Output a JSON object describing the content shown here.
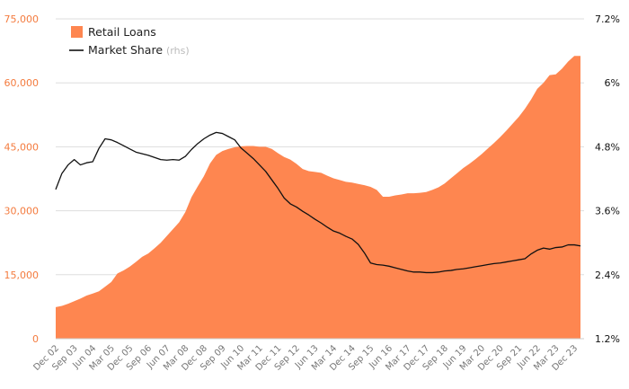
{
  "chart_data": {
    "type": "area",
    "y_left": {
      "min": 0,
      "max": 75000,
      "ticks": [
        "0",
        "15,000",
        "30,000",
        "45,000",
        "60,000",
        "75,000"
      ],
      "values": [
        0,
        15000,
        30000,
        45000,
        60000,
        75000
      ]
    },
    "y_right": {
      "min": 1.2,
      "max": 7.2,
      "ticks": [
        "1.2%",
        "2.4%",
        "3.6%",
        "4.8%",
        "6%",
        "7.2%"
      ],
      "values": [
        1.2,
        2.4,
        3.6,
        4.8,
        6.0,
        7.2
      ]
    },
    "x_ticks": [
      "Dec 02",
      "Sep 03",
      "Jun 04",
      "Mar 05",
      "Dec 05",
      "Sep 06",
      "Jun 07",
      "Mar 08",
      "Dec 08",
      "Sep 09",
      "Jun 10",
      "Mar 11",
      "Dec 11",
      "Sep 12",
      "Jun 13",
      "Mar 14",
      "Dec 14",
      "Sep 15",
      "Jun 16",
      "Mar 17",
      "Dec 17",
      "Sep 18",
      "Jun 19",
      "Mar 20",
      "Dec 20",
      "Sep 21",
      "Jun 22",
      "Mar 23",
      "Dec 23"
    ],
    "x_range_quarters": [
      0,
      85
    ],
    "grid": "horizontal",
    "legend_position": "top-left",
    "series": [
      {
        "name": "Retail Loans",
        "kind": "area",
        "axis": "left",
        "color": "#fe8650",
        "points": [
          [
            0,
            7400
          ],
          [
            1,
            7700
          ],
          [
            2,
            8200
          ],
          [
            3,
            8800
          ],
          [
            4,
            9400
          ],
          [
            5,
            10100
          ],
          [
            6,
            10600
          ],
          [
            7,
            11100
          ],
          [
            8,
            12200
          ],
          [
            9,
            13300
          ],
          [
            10,
            15300
          ],
          [
            11,
            16000
          ],
          [
            12,
            16900
          ],
          [
            13,
            18000
          ],
          [
            14,
            19200
          ],
          [
            15,
            20000
          ],
          [
            16,
            21200
          ],
          [
            17,
            22500
          ],
          [
            18,
            24100
          ],
          [
            19,
            25700
          ],
          [
            20,
            27300
          ],
          [
            21,
            29700
          ],
          [
            22,
            33200
          ],
          [
            23,
            35700
          ],
          [
            24,
            38100
          ],
          [
            25,
            41100
          ],
          [
            26,
            43100
          ],
          [
            27,
            44000
          ],
          [
            28,
            44500
          ],
          [
            29,
            44900
          ],
          [
            30,
            45100
          ],
          [
            31,
            45200
          ],
          [
            32,
            45200
          ],
          [
            33,
            45000
          ],
          [
            34,
            45000
          ],
          [
            35,
            44500
          ],
          [
            36,
            43500
          ],
          [
            37,
            42600
          ],
          [
            38,
            42000
          ],
          [
            39,
            41000
          ],
          [
            40,
            39800
          ],
          [
            41,
            39300
          ],
          [
            42,
            39100
          ],
          [
            43,
            38900
          ],
          [
            44,
            38200
          ],
          [
            45,
            37600
          ],
          [
            46,
            37200
          ],
          [
            47,
            36800
          ],
          [
            48,
            36600
          ],
          [
            49,
            36300
          ],
          [
            50,
            36000
          ],
          [
            51,
            35600
          ],
          [
            52,
            34900
          ],
          [
            53,
            33300
          ],
          [
            54,
            33300
          ],
          [
            55,
            33600
          ],
          [
            56,
            33800
          ],
          [
            57,
            34100
          ],
          [
            58,
            34100
          ],
          [
            59,
            34200
          ],
          [
            60,
            34400
          ],
          [
            61,
            34900
          ],
          [
            62,
            35500
          ],
          [
            63,
            36400
          ],
          [
            64,
            37600
          ],
          [
            65,
            38800
          ],
          [
            66,
            40000
          ],
          [
            67,
            41000
          ],
          [
            68,
            42100
          ],
          [
            69,
            43300
          ],
          [
            70,
            44600
          ],
          [
            71,
            45900
          ],
          [
            72,
            47300
          ],
          [
            73,
            48800
          ],
          [
            74,
            50400
          ],
          [
            75,
            52000
          ],
          [
            76,
            53900
          ],
          [
            77,
            56100
          ],
          [
            78,
            58600
          ],
          [
            79,
            60000
          ],
          [
            80,
            61800
          ],
          [
            81,
            62000
          ],
          [
            82,
            63300
          ],
          [
            83,
            65000
          ],
          [
            84,
            66300
          ],
          [
            85,
            66300
          ]
        ]
      },
      {
        "name": "Market Share",
        "note": "(rhs)",
        "kind": "line",
        "axis": "right",
        "color": "#111111",
        "points": [
          [
            0,
            4.0
          ],
          [
            1,
            4.3
          ],
          [
            2,
            4.46
          ],
          [
            3,
            4.56
          ],
          [
            4,
            4.46
          ],
          [
            5,
            4.5
          ],
          [
            6,
            4.52
          ],
          [
            7,
            4.77
          ],
          [
            8,
            4.95
          ],
          [
            9,
            4.93
          ],
          [
            10,
            4.88
          ],
          [
            11,
            4.82
          ],
          [
            12,
            4.76
          ],
          [
            13,
            4.7
          ],
          [
            14,
            4.67
          ],
          [
            15,
            4.64
          ],
          [
            16,
            4.6
          ],
          [
            17,
            4.56
          ],
          [
            18,
            4.55
          ],
          [
            19,
            4.56
          ],
          [
            20,
            4.55
          ],
          [
            21,
            4.62
          ],
          [
            22,
            4.75
          ],
          [
            23,
            4.86
          ],
          [
            24,
            4.95
          ],
          [
            25,
            5.02
          ],
          [
            26,
            5.07
          ],
          [
            27,
            5.05
          ],
          [
            28,
            4.99
          ],
          [
            29,
            4.93
          ],
          [
            30,
            4.78
          ],
          [
            31,
            4.68
          ],
          [
            32,
            4.58
          ],
          [
            33,
            4.46
          ],
          [
            34,
            4.34
          ],
          [
            35,
            4.18
          ],
          [
            36,
            4.02
          ],
          [
            37,
            3.84
          ],
          [
            38,
            3.73
          ],
          [
            39,
            3.67
          ],
          [
            40,
            3.59
          ],
          [
            41,
            3.52
          ],
          [
            42,
            3.44
          ],
          [
            43,
            3.37
          ],
          [
            44,
            3.29
          ],
          [
            45,
            3.22
          ],
          [
            46,
            3.18
          ],
          [
            47,
            3.12
          ],
          [
            48,
            3.07
          ],
          [
            49,
            2.97
          ],
          [
            50,
            2.81
          ],
          [
            51,
            2.62
          ],
          [
            52,
            2.59
          ],
          [
            53,
            2.58
          ],
          [
            54,
            2.56
          ],
          [
            55,
            2.53
          ],
          [
            56,
            2.5
          ],
          [
            57,
            2.47
          ],
          [
            58,
            2.45
          ],
          [
            59,
            2.45
          ],
          [
            60,
            2.44
          ],
          [
            61,
            2.44
          ],
          [
            62,
            2.45
          ],
          [
            63,
            2.47
          ],
          [
            64,
            2.48
          ],
          [
            65,
            2.5
          ],
          [
            66,
            2.51
          ],
          [
            67,
            2.53
          ],
          [
            68,
            2.55
          ],
          [
            69,
            2.57
          ],
          [
            70,
            2.59
          ],
          [
            71,
            2.61
          ],
          [
            72,
            2.62
          ],
          [
            73,
            2.64
          ],
          [
            74,
            2.66
          ],
          [
            75,
            2.68
          ],
          [
            76,
            2.7
          ],
          [
            77,
            2.79
          ],
          [
            78,
            2.86
          ],
          [
            79,
            2.9
          ],
          [
            80,
            2.88
          ],
          [
            81,
            2.91
          ],
          [
            82,
            2.92
          ],
          [
            83,
            2.96
          ],
          [
            84,
            2.96
          ],
          [
            85,
            2.94
          ]
        ]
      }
    ]
  }
}
